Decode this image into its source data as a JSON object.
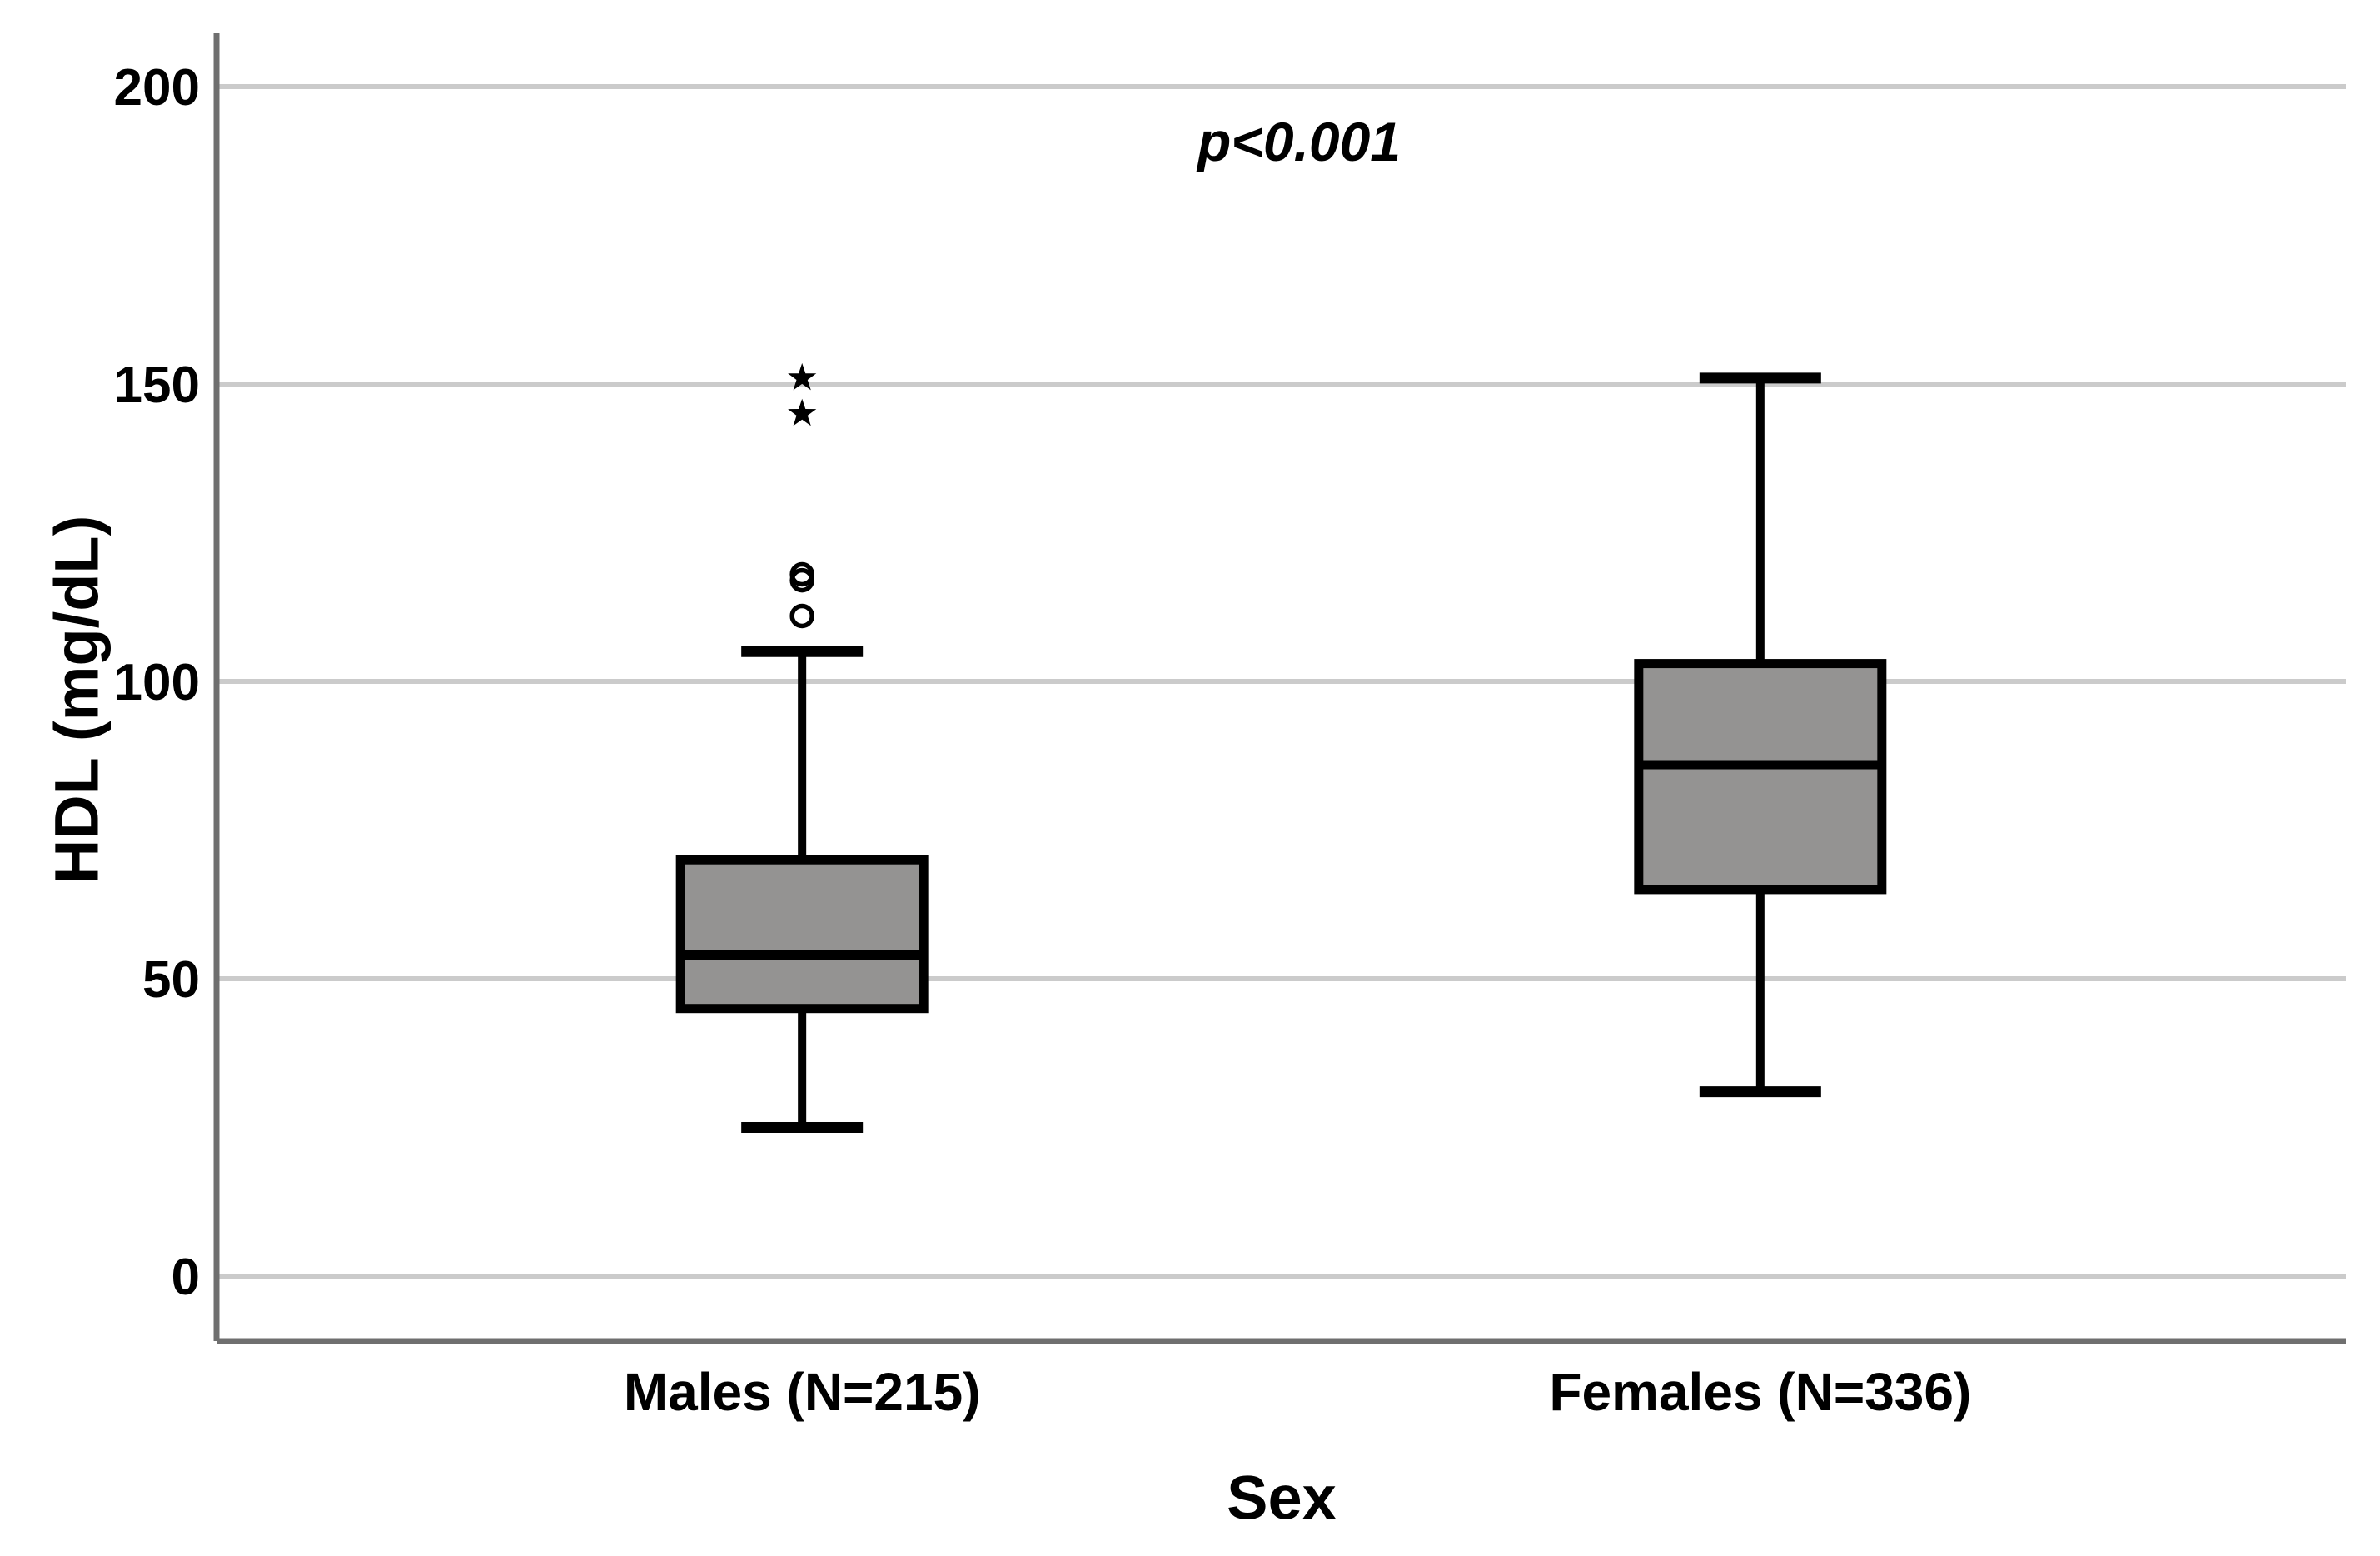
{
  "chart_data": {
    "type": "boxplot",
    "title": "",
    "xlabel": "Sex",
    "ylabel": "HDL (mg/dL)",
    "annotation": "p<0.001",
    "yticks": [
      0,
      50,
      100,
      150,
      200
    ],
    "ylim": [
      -12,
      209
    ],
    "grid": true,
    "legend": false,
    "categories": [
      "Males (N=215)",
      "Females (N=336)"
    ],
    "series": [
      {
        "name": "Males (N=215)",
        "whisker_low": 25,
        "q1": 45,
        "median": 54,
        "q3": 70,
        "whisker_high": 105,
        "outliers_circle": [
          111,
          117,
          118
        ],
        "outliers_extreme": [
          145,
          151
        ]
      },
      {
        "name": "Females (N=336)",
        "whisker_low": 31,
        "q1": 65,
        "median": 86,
        "q3": 103,
        "whisker_high": 151,
        "outliers_circle": [],
        "outliers_extreme": []
      }
    ],
    "colors": {
      "background": "#ffffff",
      "box_fill": "#949392",
      "box_stroke": "#000000",
      "median": "#000000",
      "whisker": "#000000",
      "outlier": "#000000",
      "gridline": "#cbcbcb",
      "axis": "#6f6f6f",
      "text": "#000000"
    }
  }
}
